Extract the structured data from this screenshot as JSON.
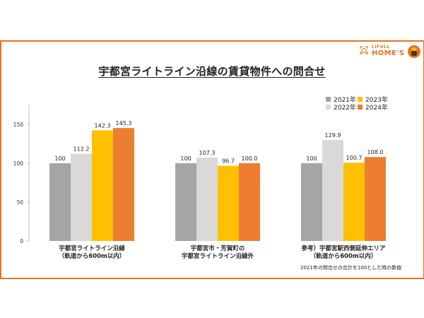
{
  "header": {
    "title": "宇都宮ライトライン沿線の賃貸物件への問合せ",
    "logo_small": "LIFULL",
    "logo_big": "HOME'S"
  },
  "footnote": "2021年の問合せの合計を100とした時の数値",
  "colors": {
    "frame": "#E8731F",
    "2021": "#A5A5A5",
    "2022": "#D9D9D9",
    "2023": "#FFC000",
    "2024": "#ED7D31",
    "axis": "#BFBFBF"
  },
  "chart_data": {
    "type": "bar",
    "title": "宇都宮ライトライン沿線の賃貸物件への問合せ",
    "xlabel": "",
    "ylabel": "",
    "ylim": [
      0,
      175
    ],
    "yticks": [
      0,
      50,
      100,
      150
    ],
    "grid": false,
    "legend_position": "top-right",
    "categories": [
      "宇都宮ライトライン沿線\n（軌道から600m以内）",
      "宇都宮市・芳賀町の\n宇都宮ライトライン沿線外",
      "参考）宇都宮駅西側延伸エリア\n（軌道から600m以内）"
    ],
    "series": [
      {
        "name": "2021年",
        "values": [
          100,
          100,
          100
        ],
        "labels": [
          "100",
          "100",
          "100"
        ]
      },
      {
        "name": "2022年",
        "values": [
          112.2,
          107.3,
          129.9
        ],
        "labels": [
          "112.2",
          "107.3",
          "129.9"
        ]
      },
      {
        "name": "2023年",
        "values": [
          142.3,
          96.7,
          100.7
        ],
        "labels": [
          "142.3",
          "96.7",
          "100.7"
        ]
      },
      {
        "name": "2024年",
        "values": [
          145.3,
          100.0,
          108.0
        ],
        "labels": [
          "145.3",
          "100.0",
          "108.0"
        ]
      }
    ],
    "note": "2021年の問合せの合計を100とした時の数値"
  }
}
